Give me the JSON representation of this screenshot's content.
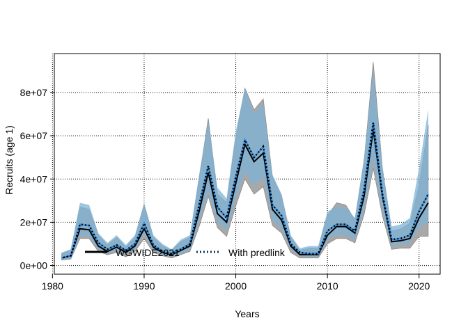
{
  "chart_data": {
    "type": "area",
    "title": "",
    "xlabel": "Years",
    "ylabel": "Recruits (age 1)",
    "xlim": [
      1980.2,
      2022.3
    ],
    "ylim": [
      -4000000,
      98000000
    ],
    "xticks": [
      1980,
      1990,
      2000,
      2010,
      2020
    ],
    "yticks": [
      0,
      20000000,
      40000000,
      60000000,
      80000000
    ],
    "ytick_labels": [
      "0e+00",
      "2e+07",
      "4e+07",
      "6e+07",
      "8e+07"
    ],
    "grid": true,
    "legend_position": "bottom-left",
    "x": [
      1981,
      1982,
      1983,
      1984,
      1985,
      1986,
      1987,
      1988,
      1989,
      1990,
      1991,
      1992,
      1993,
      1994,
      1995,
      1996,
      1997,
      1998,
      1999,
      2000,
      2001,
      2002,
      2003,
      2004,
      2005,
      2006,
      2007,
      2008,
      2009,
      2010,
      2011,
      2012,
      2013,
      2014,
      2015,
      2016,
      2017,
      2018,
      2019,
      2020,
      2021
    ],
    "series": [
      {
        "name": "WGWIDE2021",
        "color": "#000000",
        "style": "solid",
        "band_color": "#a8a8a8",
        "values": [
          3500000.0,
          4500000.0,
          17000000.0,
          16500000.0,
          9000000.0,
          6500000.0,
          8500000.0,
          6000000.0,
          9000000.0,
          17000000.0,
          8500000.0,
          6000000.0,
          5000000.0,
          7000000.0,
          9000000.0,
          25000000.0,
          43000000.0,
          24000000.0,
          20000000.0,
          38000000.0,
          56000000.0,
          48000000.0,
          52000000.0,
          26000000.0,
          21000000.0,
          9000000.0,
          5000000.0,
          5000000.0,
          5000000.0,
          14000000.0,
          18000000.0,
          18000000.0,
          15000000.0,
          32000000.0,
          63000000.0,
          32000000.0,
          11000000.0,
          11500000.0,
          12500000.0,
          22000000.0,
          29000000.0
        ],
        "lower": [
          2500000.0,
          3000000.0,
          12500000.0,
          12500000.0,
          6500000.0,
          5000000.0,
          6000000.0,
          4000000.0,
          6500000.0,
          12500000.0,
          6000000.0,
          4500000.0,
          3500000.0,
          5000000.0,
          6500000.0,
          18000000.0,
          32000000.0,
          17500000.0,
          13500000.0,
          27500000.0,
          40000000.0,
          33000000.0,
          36500000.0,
          18500000.0,
          15000000.0,
          6000000.0,
          3500000.0,
          3500000.0,
          3500000.0,
          10000000.0,
          12500000.0,
          12500000.0,
          10500000.0,
          23500000.0,
          45000000.0,
          23000000.0,
          7500000.0,
          8000000.0,
          8000000.0,
          13500000.0,
          13500000.0
        ],
        "upper": [
          5500000.0,
          7000000.0,
          27000000.0,
          26000000.0,
          14000000.0,
          9500000.0,
          13000000.0,
          8500000.0,
          13000000.0,
          28000000.0,
          13000000.0,
          9000000.0,
          7000000.0,
          11000000.0,
          13000000.0,
          40000000.0,
          68000000.0,
          33000000.0,
          29000000.0,
          59000000.0,
          82000000.0,
          72000000.0,
          77000000.0,
          41000000.0,
          32000000.0,
          13000000.0,
          7000000.0,
          8000000.0,
          8000000.0,
          23000000.0,
          29000000.0,
          28000000.0,
          21000000.0,
          48000000.0,
          94000000.0,
          45000000.0,
          16000000.0,
          17000000.0,
          19500000.0,
          37000000.0,
          65000000.0
        ]
      },
      {
        "name": "With predlink",
        "color": "#1e90ff",
        "style": "dotted",
        "band_color": "#7fb3d5",
        "values": [
          3500000.0,
          4500000.0,
          19000000.0,
          18500000.0,
          10500000.0,
          7500000.0,
          9500000.0,
          7000000.0,
          10000000.0,
          19500000.0,
          9500000.0,
          6500000.0,
          5500000.0,
          7500000.0,
          10000000.0,
          28000000.0,
          46000000.0,
          27000000.0,
          22000000.0,
          41000000.0,
          58000000.0,
          50000000.0,
          55000000.0,
          28000000.0,
          23000000.0,
          10000000.0,
          6000000.0,
          5500000.0,
          5500000.0,
          16000000.0,
          19000000.0,
          19000000.0,
          16000000.0,
          35000000.0,
          66000000.0,
          33000000.0,
          12000000.0,
          12500000.0,
          14000000.0,
          25000000.0,
          33000000.0
        ],
        "lower": [
          2800000.0,
          3200000.0,
          14000000.0,
          13500000.0,
          7500000.0,
          5500000.0,
          7000000.0,
          5000000.0,
          7500000.0,
          14500000.0,
          7000000.0,
          5000000.0,
          4000000.0,
          5500000.0,
          7500000.0,
          21000000.0,
          34000000.0,
          20000000.0,
          16000000.0,
          31000000.0,
          43000000.0,
          37000000.0,
          41000000.0,
          21000000.0,
          17000000.0,
          7500000.0,
          4500000.0,
          4000000.0,
          4000000.0,
          12000000.0,
          14000000.0,
          14000000.0,
          12000000.0,
          26000000.0,
          49000000.0,
          25000000.0,
          9000000.0,
          9500000.0,
          10500000.0,
          17500000.0,
          20000000.0
        ],
        "upper": [
          6000000.0,
          7500000.0,
          29000000.0,
          28000000.0,
          15000000.0,
          10500000.0,
          14000000.0,
          9500000.0,
          14000000.0,
          29000000.0,
          14000000.0,
          10000000.0,
          7500000.0,
          12000000.0,
          14000000.0,
          42000000.0,
          67000000.0,
          36000000.0,
          31000000.0,
          62000000.0,
          82000000.0,
          70000000.0,
          75000000.0,
          42000000.0,
          33000000.0,
          14000000.0,
          8000000.0,
          9000000.0,
          9000000.0,
          25000000.0,
          27000000.0,
          27000000.0,
          22000000.0,
          50000000.0,
          90000000.0,
          46000000.0,
          18000000.0,
          19000000.0,
          22000000.0,
          45000000.0,
          72000000.0
        ]
      }
    ]
  }
}
